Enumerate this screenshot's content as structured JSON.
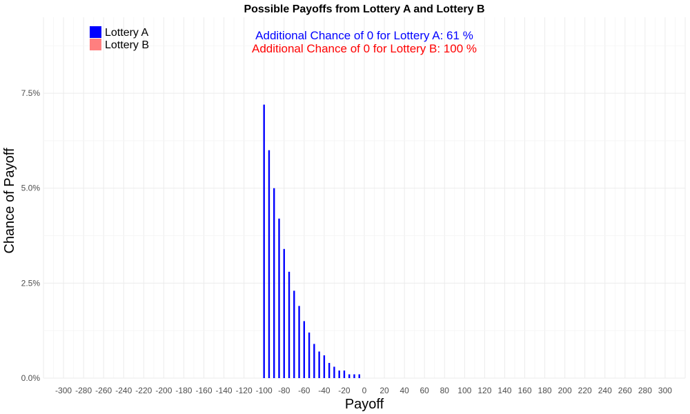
{
  "chart_data": {
    "type": "bar",
    "title": "Possible Payoffs from Lottery A and Lottery B",
    "xlabel": "Payoff",
    "ylabel": "Chance of Payoff",
    "xlim": [
      -320,
      320
    ],
    "ylim": [
      0,
      0.095
    ],
    "x_ticks": [
      -300,
      -280,
      -260,
      -240,
      -220,
      -200,
      -180,
      -160,
      -140,
      -120,
      -100,
      -80,
      -60,
      -40,
      -20,
      0,
      20,
      40,
      60,
      80,
      100,
      120,
      140,
      160,
      180,
      200,
      220,
      240,
      260,
      280,
      300
    ],
    "y_ticks": [
      0,
      0.025,
      0.05,
      0.075
    ],
    "y_tick_labels": [
      "0.0%",
      "2.5%",
      "5.0%",
      "7.5%"
    ],
    "grid": true,
    "legend_position": "top-left",
    "series": [
      {
        "name": "Lottery A",
        "color": "#0000ff",
        "x": [
          -100,
          -95,
          -90,
          -85,
          -80,
          -75,
          -70,
          -65,
          -60,
          -55,
          -50,
          -45,
          -40,
          -35,
          -30,
          -25,
          -20,
          -15,
          -10,
          -5
        ],
        "values": [
          0.072,
          0.06,
          0.05,
          0.042,
          0.034,
          0.028,
          0.023,
          0.019,
          0.015,
          0.012,
          0.009,
          0.007,
          0.006,
          0.004,
          0.003,
          0.002,
          0.002,
          0.001,
          0.001,
          0.001
        ]
      },
      {
        "name": "Lottery B",
        "color": "#ff7f7f",
        "x": [],
        "values": []
      }
    ],
    "annotations": [
      {
        "text": "Additional Chance of 0 for Lottery A:  61 %",
        "color": "#0000ff"
      },
      {
        "text": "Additional Chance of 0 for Lottery B:  100 %",
        "color": "#ff0000"
      }
    ]
  }
}
